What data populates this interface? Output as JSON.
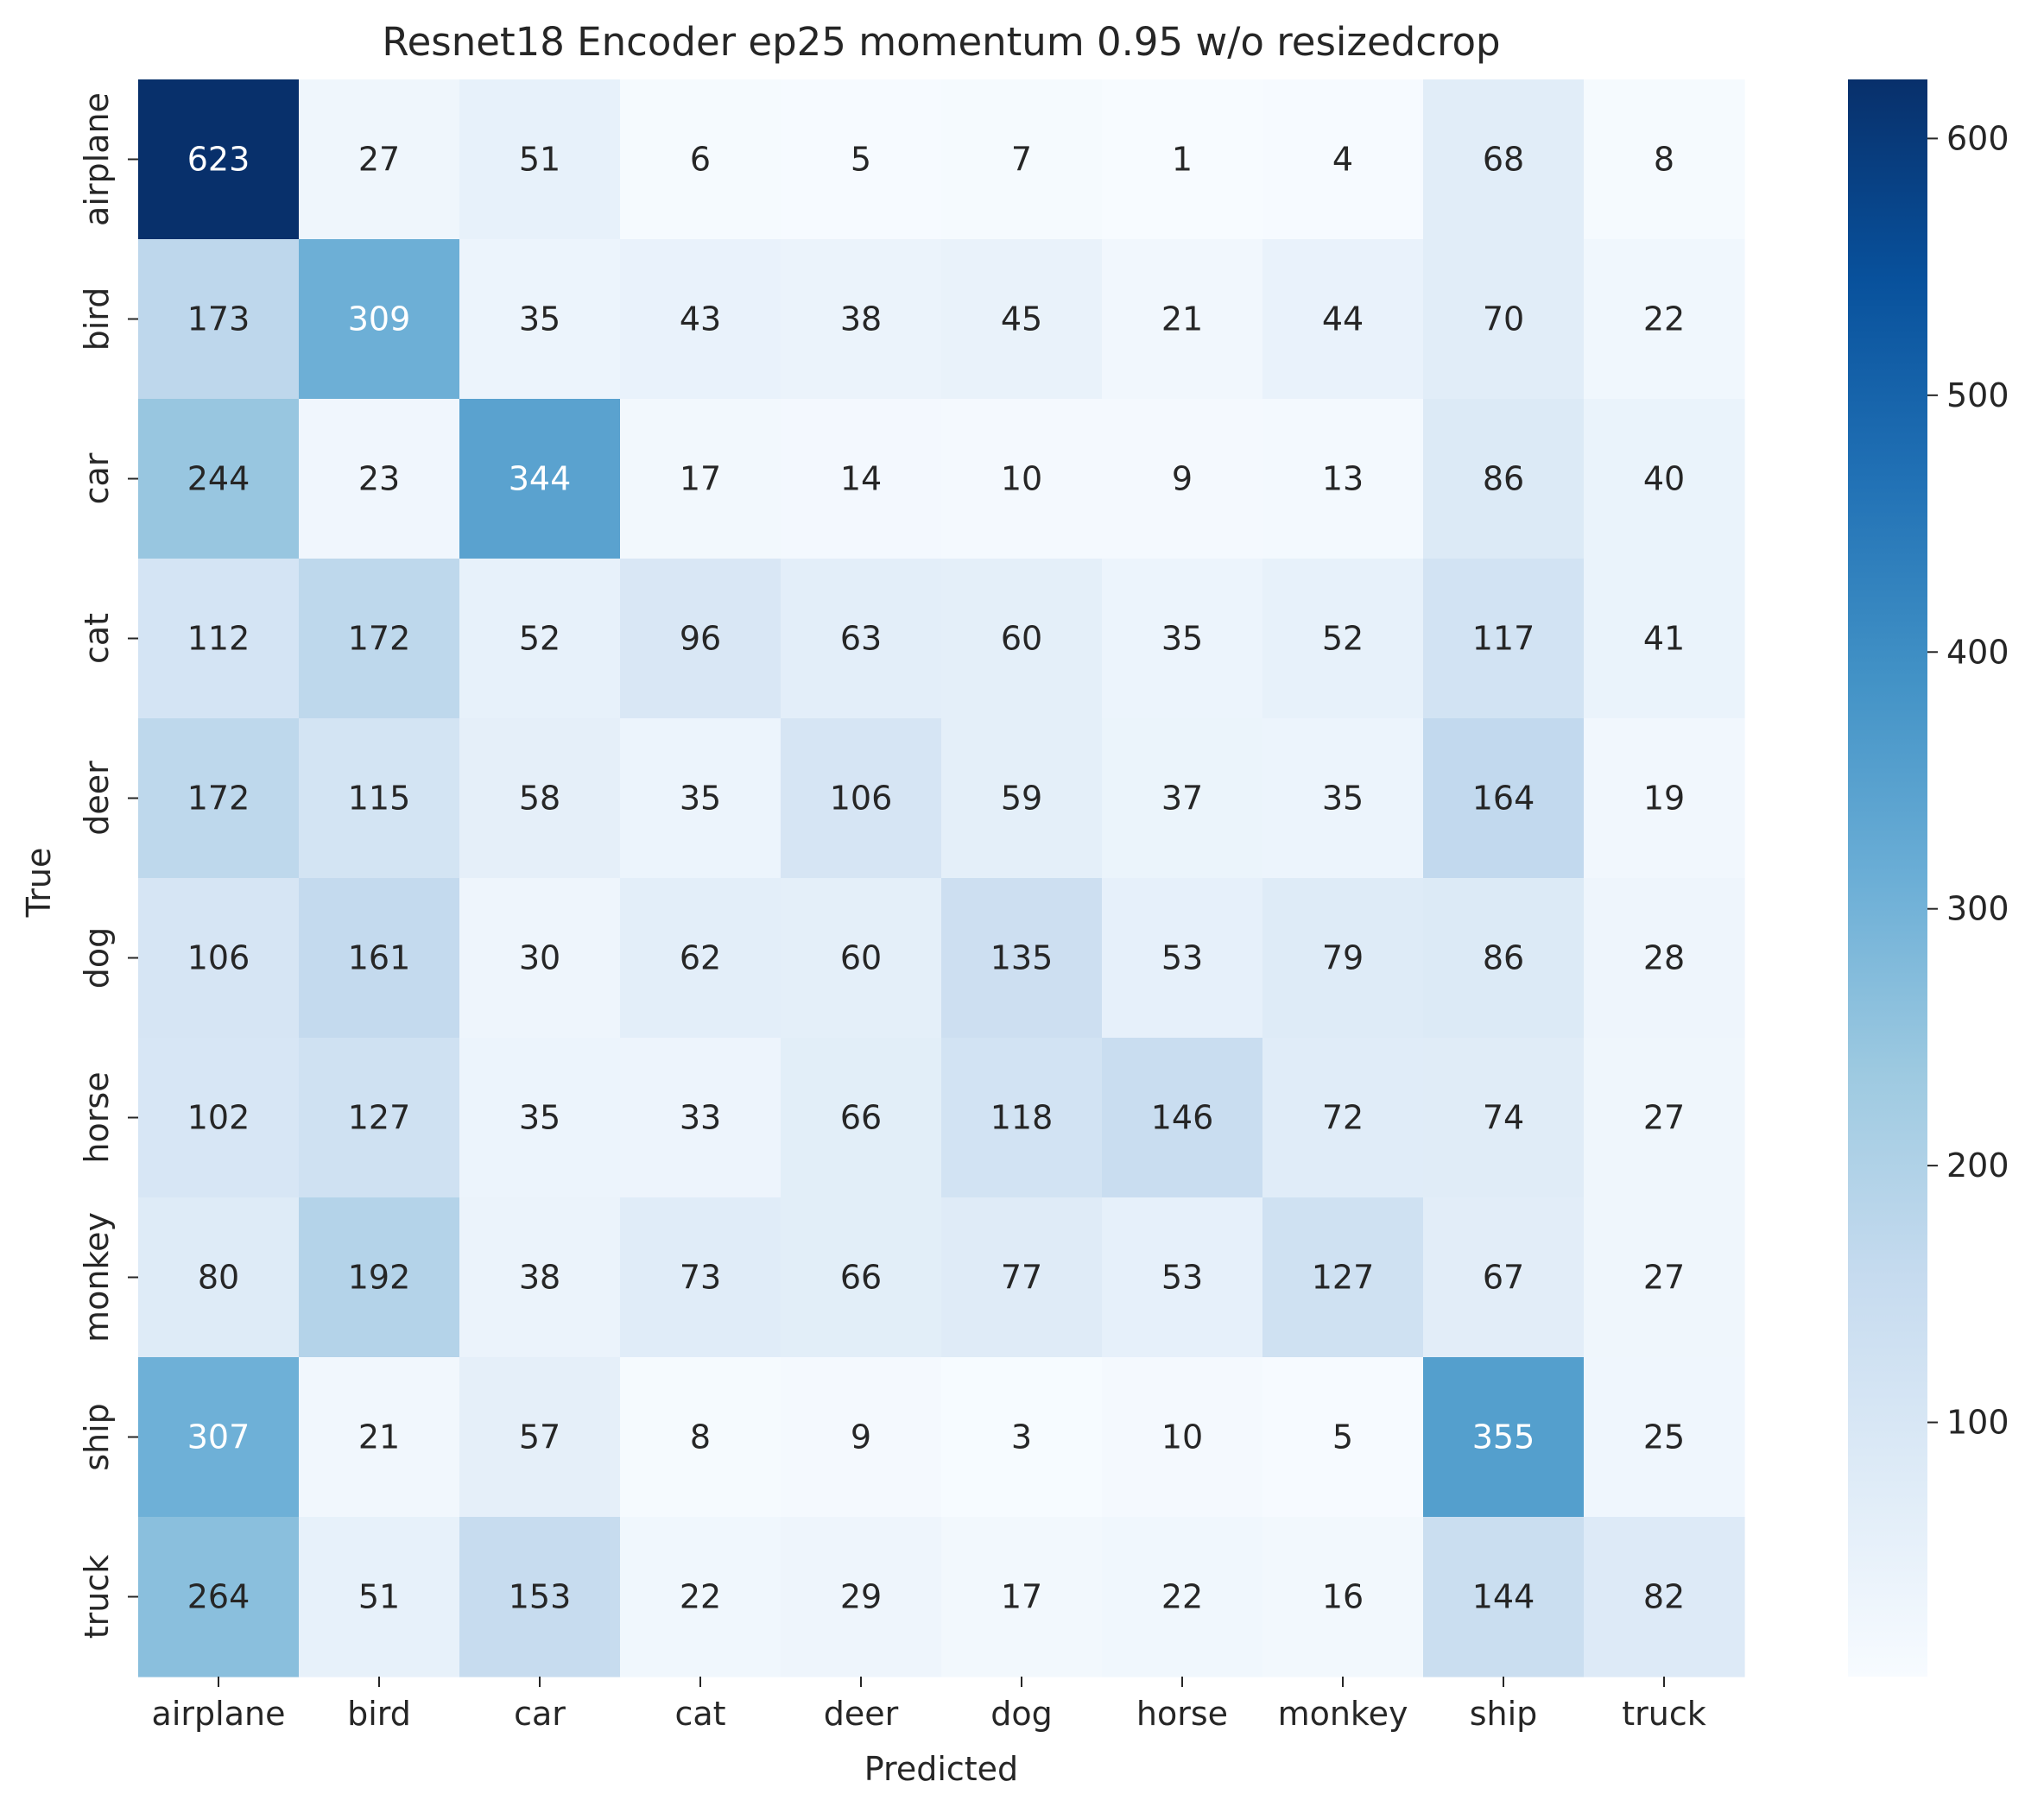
{
  "chart_data": {
    "type": "heatmap",
    "title": "Resnet18 Encoder ep25 momentum 0.95 w/o resizedcrop",
    "xlabel": "Predicted",
    "ylabel": "True",
    "x_categories": [
      "airplane",
      "bird",
      "car",
      "cat",
      "deer",
      "dog",
      "horse",
      "monkey",
      "ship",
      "truck"
    ],
    "y_categories": [
      "airplane",
      "bird",
      "car",
      "cat",
      "deer",
      "dog",
      "horse",
      "monkey",
      "ship",
      "truck"
    ],
    "values": [
      [
        623,
        27,
        51,
        6,
        5,
        7,
        1,
        4,
        68,
        8
      ],
      [
        173,
        309,
        35,
        43,
        38,
        45,
        21,
        44,
        70,
        22
      ],
      [
        244,
        23,
        344,
        17,
        14,
        10,
        9,
        13,
        86,
        40
      ],
      [
        112,
        172,
        52,
        96,
        63,
        60,
        35,
        52,
        117,
        41
      ],
      [
        172,
        115,
        58,
        35,
        106,
        59,
        37,
        35,
        164,
        19
      ],
      [
        106,
        161,
        30,
        62,
        60,
        135,
        53,
        79,
        86,
        28
      ],
      [
        102,
        127,
        35,
        33,
        66,
        118,
        146,
        72,
        74,
        27
      ],
      [
        80,
        192,
        38,
        73,
        66,
        77,
        53,
        127,
        67,
        27
      ],
      [
        307,
        21,
        57,
        8,
        9,
        3,
        10,
        5,
        355,
        25
      ],
      [
        264,
        51,
        153,
        22,
        29,
        17,
        22,
        16,
        144,
        82
      ]
    ],
    "colormap": "Blues",
    "vmin": 1,
    "vmax": 623,
    "colorbar_ticks": [
      100,
      200,
      300,
      400,
      500,
      600
    ],
    "grid": false
  }
}
